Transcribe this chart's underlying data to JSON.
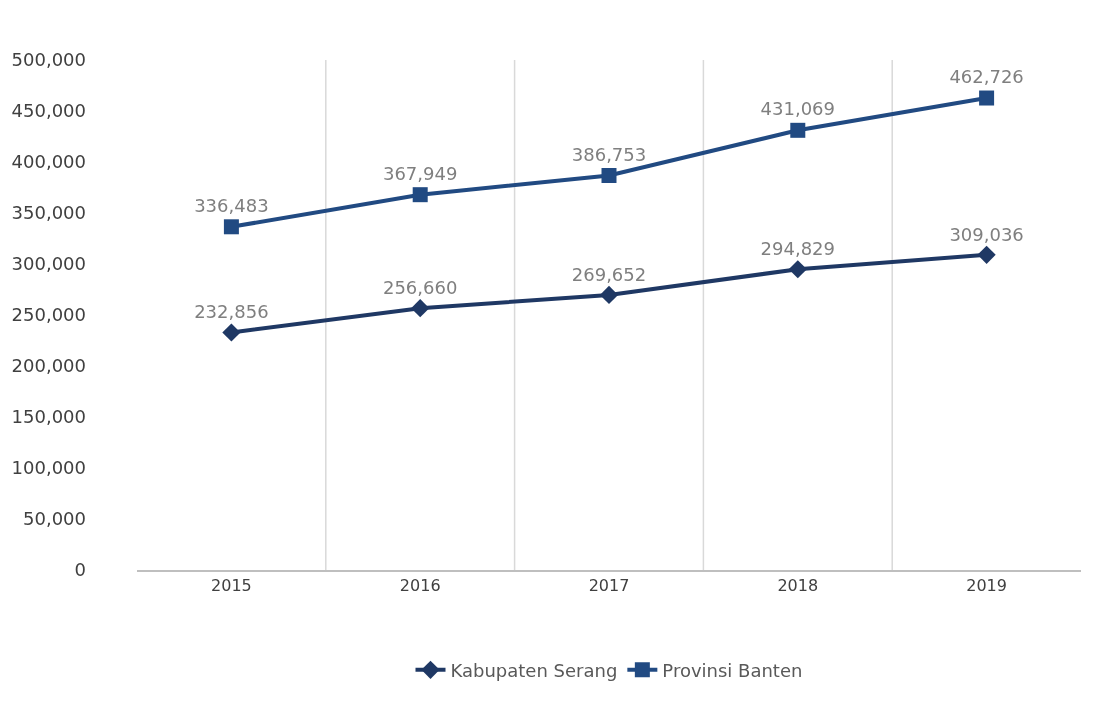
{
  "chart_data": {
    "type": "line",
    "categories": [
      "2015",
      "2016",
      "2017",
      "2018",
      "2019"
    ],
    "series": [
      {
        "name": "Kabupaten Serang",
        "color": "#1f3864",
        "marker": "diamond",
        "values": [
          232856,
          256660,
          269652,
          294829,
          309036
        ],
        "value_labels": [
          "232,856",
          "256,660",
          "269,652",
          "294,829",
          "309,036"
        ]
      },
      {
        "name": "Provinsi Banten",
        "color": "#214a82",
        "marker": "square",
        "values": [
          336483,
          367949,
          386753,
          431069,
          462726
        ],
        "value_labels": [
          "336,483",
          "367,949",
          "386,753",
          "431,069",
          "462,726"
        ]
      }
    ],
    "ylim": [
      0,
      500000
    ],
    "yticks": [
      {
        "value": 0,
        "label": "0"
      },
      {
        "value": 50000,
        "label": "50,000"
      },
      {
        "value": 100000,
        "label": "100,000"
      },
      {
        "value": 150000,
        "label": "150,000"
      },
      {
        "value": 200000,
        "label": "200,000"
      },
      {
        "value": 250000,
        "label": "250,000"
      },
      {
        "value": 300000,
        "label": "300,000"
      },
      {
        "value": 350000,
        "label": "350,000"
      },
      {
        "value": 400000,
        "label": "400,000"
      },
      {
        "value": 450000,
        "label": "450,000"
      },
      {
        "value": 500000,
        "label": "500,000"
      }
    ],
    "grid": "x",
    "legend": "bottom",
    "line_style": "solid"
  }
}
